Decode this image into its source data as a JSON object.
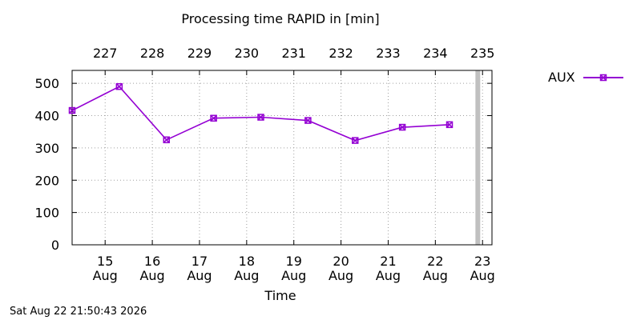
{
  "chart_data": {
    "type": "line",
    "title": "Processing time RAPID in [min]",
    "xlabel": "Time",
    "ylabel": "",
    "ylim": [
      0,
      540
    ],
    "yticks": [
      0,
      100,
      200,
      300,
      400,
      500
    ],
    "xlim": [
      14.3,
      23.2
    ],
    "bottom_ticks": [
      {
        "x": 15,
        "day": "15",
        "month": "Aug"
      },
      {
        "x": 16,
        "day": "16",
        "month": "Aug"
      },
      {
        "x": 17,
        "day": "17",
        "month": "Aug"
      },
      {
        "x": 18,
        "day": "18",
        "month": "Aug"
      },
      {
        "x": 19,
        "day": "19",
        "month": "Aug"
      },
      {
        "x": 20,
        "day": "20",
        "month": "Aug"
      },
      {
        "x": 21,
        "day": "21",
        "month": "Aug"
      },
      {
        "x": 22,
        "day": "22",
        "month": "Aug"
      },
      {
        "x": 23,
        "day": "23",
        "month": "Aug"
      }
    ],
    "top_ticks": [
      {
        "x": 15,
        "label": "227"
      },
      {
        "x": 16,
        "label": "228"
      },
      {
        "x": 17,
        "label": "229"
      },
      {
        "x": 18,
        "label": "230"
      },
      {
        "x": 19,
        "label": "231"
      },
      {
        "x": 20,
        "label": "232"
      },
      {
        "x": 21,
        "label": "233"
      },
      {
        "x": 22,
        "label": "234"
      },
      {
        "x": 23,
        "label": "235"
      }
    ],
    "grid": true,
    "legend_position": "top-right, outside plot",
    "current_marker_x": 22.9,
    "series": [
      {
        "name": "AUX",
        "color": "#9400d3",
        "marker": "x-square",
        "x": [
          14.3,
          15.3,
          16.3,
          17.3,
          18.3,
          19.3,
          20.3,
          21.3,
          22.3
        ],
        "y": [
          416,
          490,
          325,
          392,
          395,
          385,
          323,
          364,
          372
        ]
      }
    ]
  },
  "timestamp": "Sat Aug 22 21:50:43 2026",
  "colors": {
    "series": "#9400d3",
    "grid": "#a0a0a0",
    "marker_bar": "#c0c0c0",
    "axis": "#000000"
  }
}
